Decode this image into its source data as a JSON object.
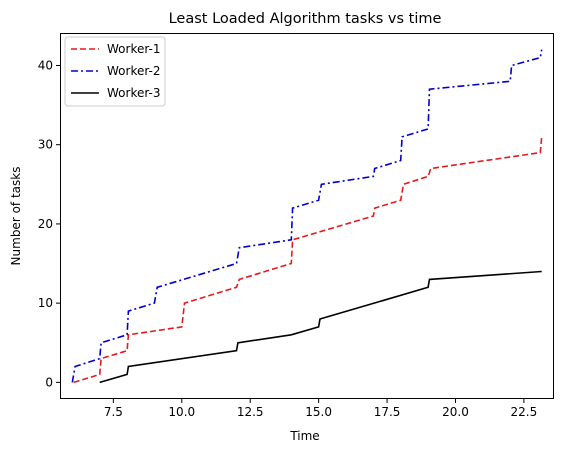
{
  "chart_data": {
    "type": "line",
    "title": "Least Loaded Algorithm tasks vs time",
    "xlabel": "Time",
    "ylabel": "Number of tasks",
    "xlim": [
      5.55,
      23.6
    ],
    "ylim": [
      -2.1,
      44.1
    ],
    "xticks": [
      7.5,
      10.0,
      12.5,
      15.0,
      17.5,
      20.0,
      22.5
    ],
    "xtick_labels": [
      "7.5",
      "10.0",
      "12.5",
      "15.0",
      "17.5",
      "20.0",
      "22.5"
    ],
    "yticks": [
      0,
      10,
      20,
      30,
      40
    ],
    "ytick_labels": [
      "0",
      "10",
      "20",
      "30",
      "40"
    ],
    "grid": false,
    "legend_position": "top-left",
    "series": [
      {
        "name": "Worker-1",
        "color": "#e41a1c",
        "dash": "dashed",
        "points": [
          [
            6.05,
            0
          ],
          [
            7.0,
            1
          ],
          [
            7.05,
            3
          ],
          [
            8.0,
            4
          ],
          [
            8.05,
            6
          ],
          [
            10.0,
            7
          ],
          [
            10.1,
            10
          ],
          [
            12.0,
            12
          ],
          [
            12.1,
            13
          ],
          [
            14.0,
            15
          ],
          [
            14.05,
            18
          ],
          [
            17.0,
            21
          ],
          [
            17.05,
            22
          ],
          [
            18.0,
            23
          ],
          [
            18.1,
            25
          ],
          [
            19.0,
            26
          ],
          [
            19.1,
            27
          ],
          [
            23.1,
            29
          ],
          [
            23.15,
            31
          ]
        ]
      },
      {
        "name": "Worker-2",
        "color": "#0000cd",
        "dash": "dashdot",
        "points": [
          [
            6.0,
            0
          ],
          [
            6.1,
            2
          ],
          [
            7.0,
            3
          ],
          [
            7.05,
            5
          ],
          [
            8.0,
            6
          ],
          [
            8.05,
            9
          ],
          [
            9.0,
            10
          ],
          [
            9.1,
            12
          ],
          [
            12.0,
            15
          ],
          [
            12.1,
            17
          ],
          [
            14.0,
            18
          ],
          [
            14.05,
            22
          ],
          [
            15.0,
            23
          ],
          [
            15.1,
            25
          ],
          [
            17.0,
            26
          ],
          [
            17.05,
            27
          ],
          [
            18.0,
            28
          ],
          [
            18.05,
            31
          ],
          [
            19.0,
            32
          ],
          [
            19.05,
            37
          ],
          [
            22.0,
            38
          ],
          [
            22.05,
            40
          ],
          [
            23.1,
            41
          ],
          [
            23.15,
            42
          ]
        ]
      },
      {
        "name": "Worker-3",
        "color": "#000000",
        "dash": "solid",
        "points": [
          [
            7.0,
            0
          ],
          [
            8.0,
            1
          ],
          [
            8.05,
            2
          ],
          [
            12.0,
            4
          ],
          [
            12.05,
            5
          ],
          [
            14.0,
            6
          ],
          [
            15.0,
            7
          ],
          [
            15.05,
            8
          ],
          [
            19.0,
            12
          ],
          [
            19.05,
            13
          ],
          [
            23.15,
            14
          ]
        ]
      }
    ]
  }
}
